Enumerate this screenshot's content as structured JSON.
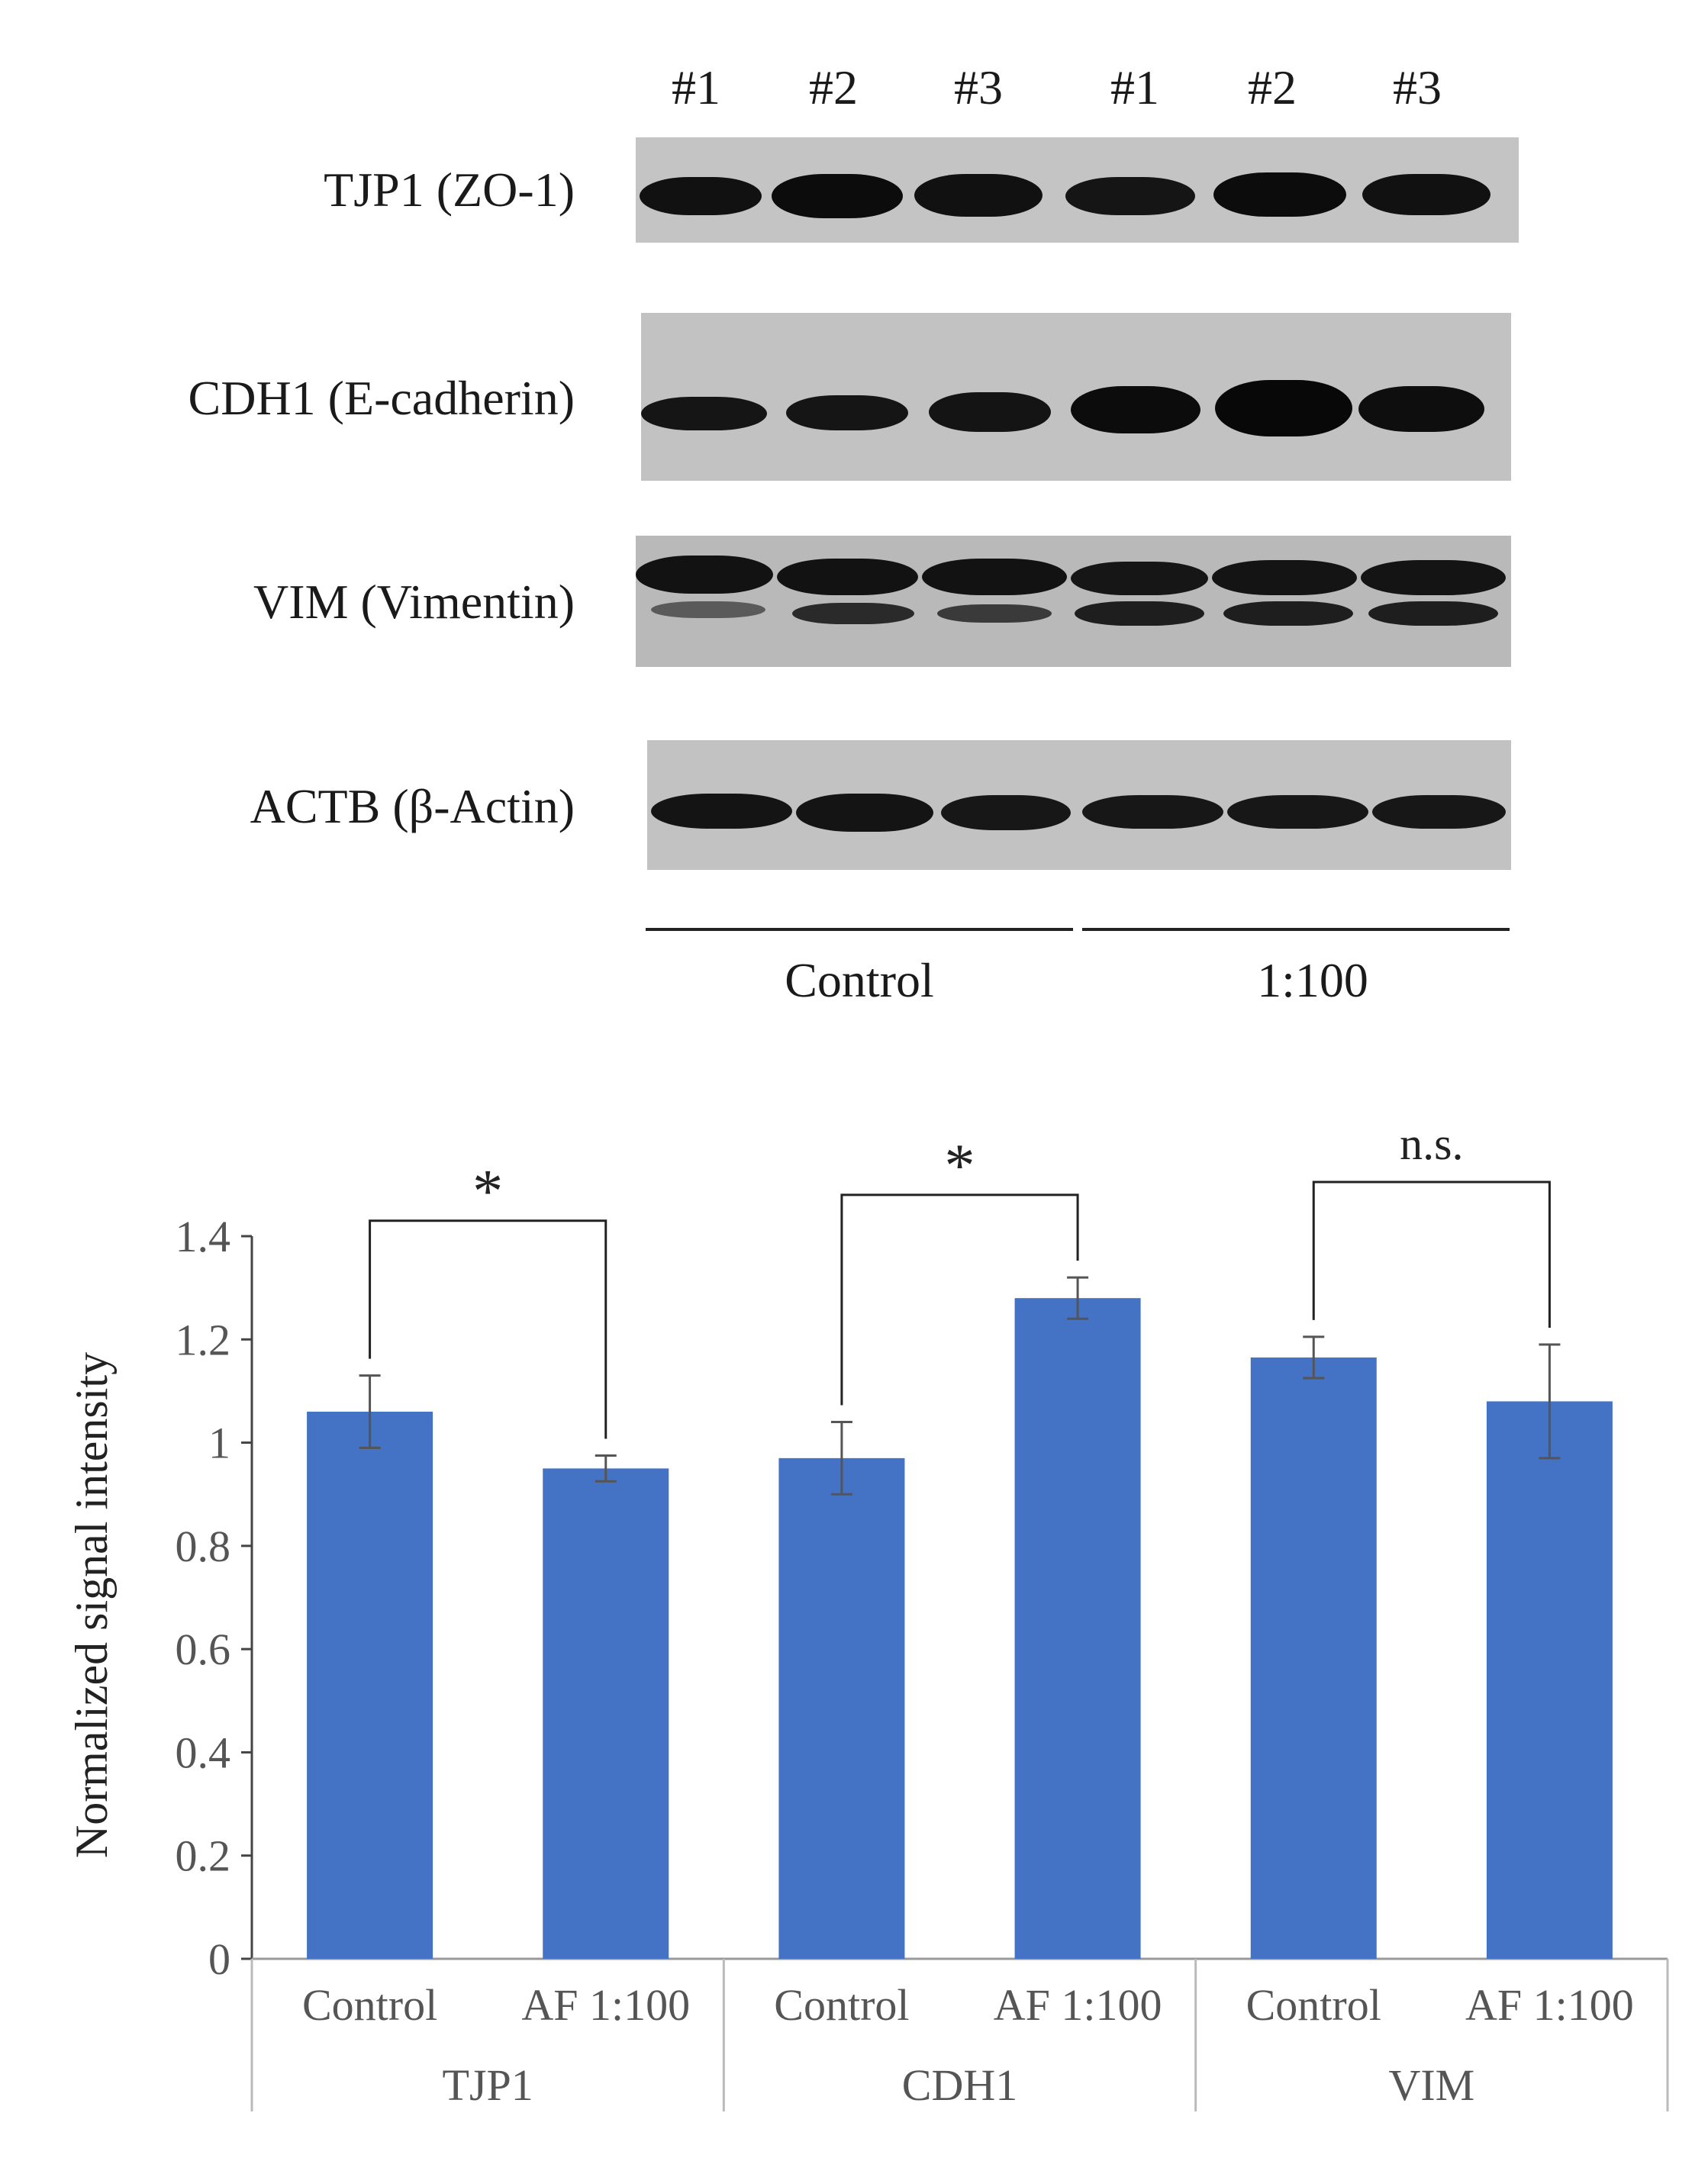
{
  "blot": {
    "lanes": [
      "#1",
      "#2",
      "#3",
      "#1",
      "#2",
      "#3"
    ],
    "rows": [
      {
        "label": "TJP1 (ZO-1)"
      },
      {
        "label": "CDH1 (E-cadherin)"
      },
      {
        "label": "VIM (Vimentin)"
      },
      {
        "label": "ACTB (β-Actin)"
      }
    ],
    "groups": [
      "Control",
      "1:100"
    ]
  },
  "chart_data": {
    "type": "bar",
    "ylabel": "Normalized signal intensity",
    "ylim": [
      0,
      1.4
    ],
    "yticks": [
      "0",
      "0.2",
      "0.4",
      "0.6",
      "0.8",
      "1",
      "1.2",
      "1.4"
    ],
    "ytick_values": [
      0,
      0.2,
      0.4,
      0.6,
      0.8,
      1,
      1.2,
      1.4
    ],
    "grid": false,
    "bar_color": "#4472C4",
    "groups": [
      {
        "name": "TJP1",
        "significance": "*",
        "bars": [
          {
            "label": "Control",
            "value": 1.06,
            "error": 0.07
          },
          {
            "label": "AF 1:100",
            "value": 0.95,
            "error": 0.025
          }
        ]
      },
      {
        "name": "CDH1",
        "significance": "*",
        "bars": [
          {
            "label": "Control",
            "value": 0.97,
            "error": 0.07
          },
          {
            "label": "AF 1:100",
            "value": 1.28,
            "error": 0.04
          }
        ]
      },
      {
        "name": "VIM",
        "significance": "n.s.",
        "bars": [
          {
            "label": "Control",
            "value": 1.165,
            "error": 0.04
          },
          {
            "label": "AF 1:100",
            "value": 1.08,
            "error": 0.11
          }
        ]
      }
    ]
  }
}
